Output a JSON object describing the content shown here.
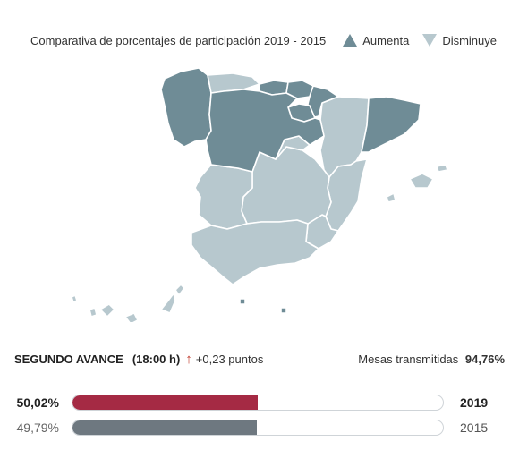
{
  "legend": {
    "title": "Comparativa de porcentajes de participación 2019 - 2015",
    "increase_label": "Aumenta",
    "decrease_label": "Disminuye",
    "increase_color": "#6f8c96",
    "decrease_color": "#b7c8ce"
  },
  "map": {
    "regions_increase": [
      "Galicia",
      "Asturias",
      "Cantabria",
      "País Vasco",
      "Navarra",
      "La Rioja",
      "Castilla y León",
      "Cataluña"
    ],
    "regions_decrease": [
      "Aragón",
      "Madrid",
      "Castilla-La Mancha",
      "Extremadura",
      "Comunidad Valenciana",
      "Murcia",
      "Andalucía",
      "Baleares",
      "Canarias",
      "Ceuta",
      "Melilla"
    ]
  },
  "advance": {
    "title": "SEGUNDO AVANCE",
    "time": "(18:00 h)",
    "arrow_icon": "arrow-up-icon",
    "delta_text": "+0,23 puntos",
    "mesas_label": "Mesas transmitidas",
    "mesas_value": "94,76%"
  },
  "bars": [
    {
      "pct_label": "50,02%",
      "value": 50.02,
      "year": "2019",
      "color": "#a52a44"
    },
    {
      "pct_label": "49,79%",
      "value": 49.79,
      "year": "2015",
      "color": "#6e7880"
    }
  ]
}
